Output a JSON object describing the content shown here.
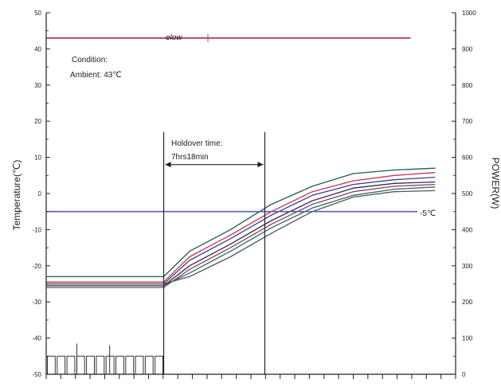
{
  "chart_data": {
    "type": "line",
    "title": "",
    "ylabel": "Temperature(℃)",
    "y2label": "POWER(W)",
    "ylim": [
      -50,
      50
    ],
    "y2lim": [
      0,
      1000
    ],
    "xlim": [
      0,
      1
    ],
    "yticks": [
      "50",
      "40",
      "30",
      "20",
      "10",
      "0",
      "-10",
      "-20",
      "-30",
      "-40",
      "-50"
    ],
    "y2ticks": [
      "1000",
      "900",
      "800",
      "700",
      "600",
      "500",
      "400",
      "300",
      "200",
      "100",
      "0"
    ],
    "grid": false,
    "colors": {
      "frame": "#222222",
      "ambient": "#b04070",
      "threshold": "#5a5acc",
      "power": "#333333",
      "curves": [
        "#1f5a55",
        "#c8334d",
        "#3b3b9a",
        "#333333",
        "#8a3a7a",
        "#2a6e4e",
        "#555555"
      ]
    },
    "annotations": {
      "condition_label": "Condition:",
      "ambient_label": "Ambient: 43℃",
      "holdover_label": "Holdover time:",
      "holdover_value": "7hrs18min",
      "threshold_label": "-5℃",
      "ambient_tag": "elow"
    },
    "ambient_temp": 43,
    "threshold_temp": -5,
    "holdover_start_x": 0.287,
    "holdover_end_x": 0.534,
    "series": [
      {
        "x": [
          0,
          0.287,
          0.35,
          0.45,
          0.55,
          0.65,
          0.75,
          0.85,
          0.95
        ],
        "y": [
          -23,
          -23,
          -16,
          -10,
          -3,
          2,
          5.5,
          6.5,
          7
        ]
      },
      {
        "x": [
          0,
          0.287,
          0.35,
          0.45,
          0.55,
          0.65,
          0.75,
          0.85,
          0.95
        ],
        "y": [
          -24.5,
          -24.5,
          -17.5,
          -11.5,
          -5,
          0.5,
          3.5,
          5,
          5.8
        ]
      },
      {
        "x": [
          0,
          0.287,
          0.35,
          0.45,
          0.55,
          0.65,
          0.75,
          0.85,
          0.95
        ],
        "y": [
          -25,
          -25,
          -18.5,
          -12.5,
          -6,
          -0.5,
          2.5,
          3.8,
          4.5
        ]
      },
      {
        "x": [
          0,
          0.287,
          0.35,
          0.45,
          0.55,
          0.65,
          0.75,
          0.85,
          0.95
        ],
        "y": [
          -25.5,
          -25.5,
          -20,
          -14,
          -7.5,
          -2,
          1.5,
          2.8,
          3.2
        ]
      },
      {
        "x": [
          0,
          0.287,
          0.35,
          0.45,
          0.55,
          0.65,
          0.75,
          0.85,
          0.95
        ],
        "y": [
          -26,
          -26,
          -21,
          -15,
          -8.5,
          -3,
          0.5,
          2,
          2.5
        ]
      },
      {
        "x": [
          0,
          0.287,
          0.35,
          0.45,
          0.55,
          0.65,
          0.75,
          0.85,
          0.95
        ],
        "y": [
          -25.5,
          -25.5,
          -22,
          -16,
          -9.5,
          -4,
          -0.5,
          1.2,
          1.8
        ]
      },
      {
        "x": [
          0,
          0.287,
          0.35,
          0.45,
          0.55,
          0.65,
          0.75,
          0.85,
          0.95
        ],
        "y": [
          -25,
          -25,
          -23,
          -17.5,
          -11,
          -5,
          -1,
          0.5,
          0.8
        ]
      }
    ],
    "power_cycle": {
      "x_end": 0.287,
      "low_w": 0,
      "high_w": 50,
      "cycles": 12,
      "spikes": [
        {
          "x": 0.075,
          "w": 85
        },
        {
          "x": 0.155,
          "w": 80
        }
      ]
    }
  }
}
